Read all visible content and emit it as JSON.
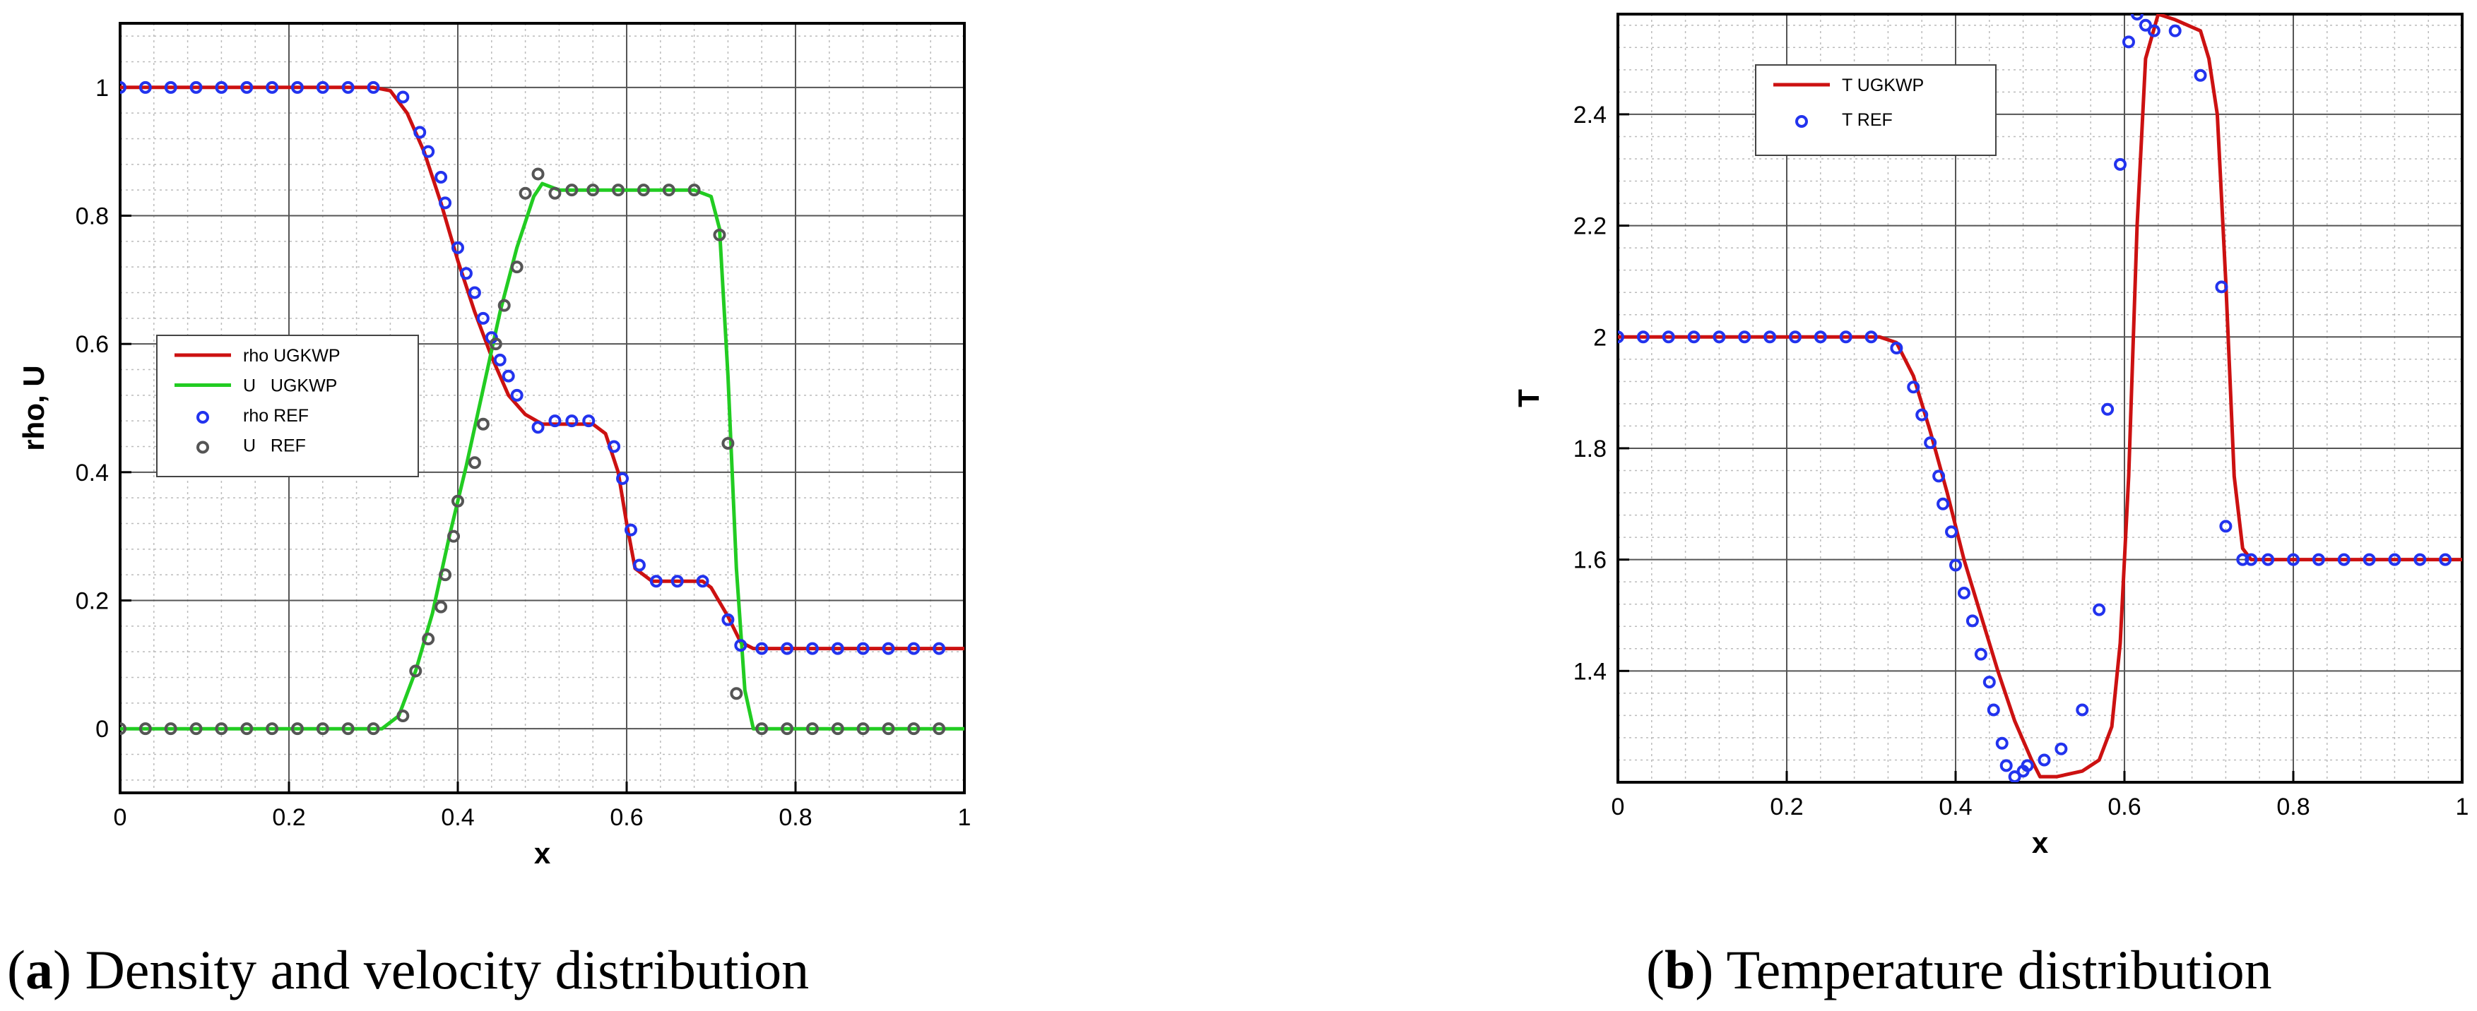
{
  "captions": {
    "a": {
      "tag": "a",
      "text": " Density and velocity distribution"
    },
    "b": {
      "tag": "b",
      "text": " Temperature distribution"
    }
  },
  "colors": {
    "rho_line": "#cc1111",
    "u_line": "#22cc22",
    "rho_marker": "#2233ee",
    "u_marker": "#555555",
    "t_line": "#cc1111",
    "t_marker": "#2233ee"
  },
  "chart_data": [
    {
      "type": "line",
      "xlabel": "x",
      "ylabel": "rho, U",
      "xlim": [
        0,
        1
      ],
      "ylim": [
        -0.1,
        1.1
      ],
      "xticks": [
        "0",
        "0.2",
        "0.4",
        "0.6",
        "0.8",
        "1"
      ],
      "yticks": [
        "0",
        "0.2",
        "0.4",
        "0.6",
        "0.8",
        "1"
      ],
      "grid": true,
      "legend_position": "center-left",
      "series": [
        {
          "name": "rho UGKWP",
          "kind": "line",
          "x": [
            0,
            0.3,
            0.32,
            0.34,
            0.36,
            0.38,
            0.4,
            0.42,
            0.44,
            0.46,
            0.48,
            0.5,
            0.52,
            0.56,
            0.575,
            0.59,
            0.6,
            0.61,
            0.63,
            0.69,
            0.7,
            0.72,
            0.735,
            0.75,
            1.0
          ],
          "y": [
            1,
            1,
            0.995,
            0.96,
            0.9,
            0.82,
            0.73,
            0.65,
            0.58,
            0.52,
            0.49,
            0.475,
            0.475,
            0.475,
            0.46,
            0.4,
            0.32,
            0.25,
            0.23,
            0.23,
            0.22,
            0.175,
            0.135,
            0.125,
            0.125
          ]
        },
        {
          "name": "U   UGKWP",
          "kind": "line",
          "x": [
            0,
            0.31,
            0.33,
            0.35,
            0.37,
            0.39,
            0.41,
            0.43,
            0.45,
            0.47,
            0.49,
            0.5,
            0.52,
            0.54,
            0.68,
            0.7,
            0.71,
            0.72,
            0.73,
            0.74,
            0.75,
            1.0
          ],
          "y": [
            0,
            0,
            0.02,
            0.09,
            0.18,
            0.3,
            0.41,
            0.53,
            0.65,
            0.75,
            0.83,
            0.85,
            0.84,
            0.84,
            0.84,
            0.83,
            0.78,
            0.55,
            0.25,
            0.06,
            0,
            0
          ]
        },
        {
          "name": "rho REF",
          "kind": "marker",
          "x": [
            0.0,
            0.03,
            0.06,
            0.09,
            0.12,
            0.15,
            0.18,
            0.21,
            0.24,
            0.27,
            0.3,
            0.335,
            0.355,
            0.365,
            0.38,
            0.385,
            0.4,
            0.41,
            0.42,
            0.43,
            0.44,
            0.45,
            0.46,
            0.47,
            0.495,
            0.515,
            0.535,
            0.555,
            0.585,
            0.595,
            0.605,
            0.615,
            0.635,
            0.66,
            0.69,
            0.72,
            0.735,
            0.76,
            0.79,
            0.82,
            0.85,
            0.88,
            0.91,
            0.94,
            0.97
          ],
          "y": [
            1,
            1,
            1,
            1,
            1,
            1,
            1,
            1,
            1,
            1,
            1,
            0.985,
            0.93,
            0.9,
            0.86,
            0.82,
            0.75,
            0.71,
            0.68,
            0.64,
            0.61,
            0.575,
            0.55,
            0.52,
            0.47,
            0.48,
            0.48,
            0.48,
            0.44,
            0.39,
            0.31,
            0.255,
            0.23,
            0.23,
            0.23,
            0.17,
            0.13,
            0.125,
            0.125,
            0.125,
            0.125,
            0.125,
            0.125,
            0.125,
            0.125
          ]
        },
        {
          "name": "U   REF",
          "kind": "marker",
          "x": [
            0.0,
            0.03,
            0.06,
            0.09,
            0.12,
            0.15,
            0.18,
            0.21,
            0.24,
            0.27,
            0.3,
            0.335,
            0.35,
            0.365,
            0.38,
            0.385,
            0.395,
            0.4,
            0.42,
            0.43,
            0.445,
            0.455,
            0.47,
            0.48,
            0.495,
            0.515,
            0.535,
            0.56,
            0.59,
            0.62,
            0.65,
            0.68,
            0.71,
            0.72,
            0.73,
            0.76,
            0.79,
            0.82,
            0.85,
            0.88,
            0.91,
            0.94,
            0.97
          ],
          "y": [
            0,
            0,
            0,
            0,
            0,
            0,
            0,
            0,
            0,
            0,
            0,
            0.02,
            0.09,
            0.14,
            0.19,
            0.24,
            0.3,
            0.355,
            0.415,
            0.475,
            0.6,
            0.66,
            0.72,
            0.835,
            0.865,
            0.835,
            0.84,
            0.84,
            0.84,
            0.84,
            0.84,
            0.84,
            0.77,
            0.445,
            0.055,
            0,
            0,
            0,
            0,
            0,
            0,
            0,
            0
          ]
        }
      ]
    },
    {
      "type": "line",
      "xlabel": "x",
      "ylabel": "T",
      "xlim": [
        0,
        1
      ],
      "ylim": [
        1.2,
        2.58
      ],
      "xticks": [
        "0",
        "0.2",
        "0.4",
        "0.6",
        "0.8",
        "1"
      ],
      "yticks": [
        "1.4",
        "1.6",
        "1.8",
        "2",
        "2.2",
        "2.4"
      ],
      "grid": true,
      "legend_position": "top-left",
      "series": [
        {
          "name": "T UGKWP",
          "kind": "line",
          "x": [
            0,
            0.31,
            0.33,
            0.35,
            0.37,
            0.39,
            0.41,
            0.43,
            0.45,
            0.47,
            0.49,
            0.5,
            0.52,
            0.55,
            0.57,
            0.585,
            0.595,
            0.605,
            0.615,
            0.625,
            0.64,
            0.66,
            0.69,
            0.7,
            0.71,
            0.72,
            0.73,
            0.74,
            0.75,
            1.0
          ],
          "y": [
            2,
            2,
            1.99,
            1.93,
            1.83,
            1.72,
            1.6,
            1.5,
            1.4,
            1.31,
            1.24,
            1.21,
            1.21,
            1.22,
            1.24,
            1.3,
            1.45,
            1.75,
            2.2,
            2.5,
            2.58,
            2.57,
            2.55,
            2.5,
            2.4,
            2.1,
            1.75,
            1.62,
            1.6,
            1.6
          ]
        },
        {
          "name": "T REF",
          "kind": "marker",
          "x": [
            0.0,
            0.03,
            0.06,
            0.09,
            0.12,
            0.15,
            0.18,
            0.21,
            0.24,
            0.27,
            0.3,
            0.33,
            0.35,
            0.36,
            0.37,
            0.38,
            0.385,
            0.395,
            0.4,
            0.41,
            0.42,
            0.43,
            0.44,
            0.445,
            0.455,
            0.46,
            0.47,
            0.48,
            0.485,
            0.505,
            0.525,
            0.55,
            0.57,
            0.58,
            0.595,
            0.605,
            0.615,
            0.625,
            0.635,
            0.66,
            0.69,
            0.715,
            0.72,
            0.74,
            0.75,
            0.77,
            0.8,
            0.83,
            0.86,
            0.89,
            0.92,
            0.95,
            0.98
          ],
          "y": [
            2,
            2,
            2,
            2,
            2,
            2,
            2,
            2,
            2,
            2,
            2,
            1.98,
            1.91,
            1.86,
            1.81,
            1.75,
            1.7,
            1.65,
            1.59,
            1.54,
            1.49,
            1.43,
            1.38,
            1.33,
            1.27,
            1.23,
            1.21,
            1.22,
            1.23,
            1.24,
            1.26,
            1.33,
            1.51,
            1.87,
            2.31,
            2.53,
            2.58,
            2.56,
            2.55,
            2.55,
            2.47,
            2.09,
            1.66,
            1.6,
            1.6,
            1.6,
            1.6,
            1.6,
            1.6,
            1.6,
            1.6,
            1.6,
            1.6
          ]
        }
      ]
    }
  ]
}
